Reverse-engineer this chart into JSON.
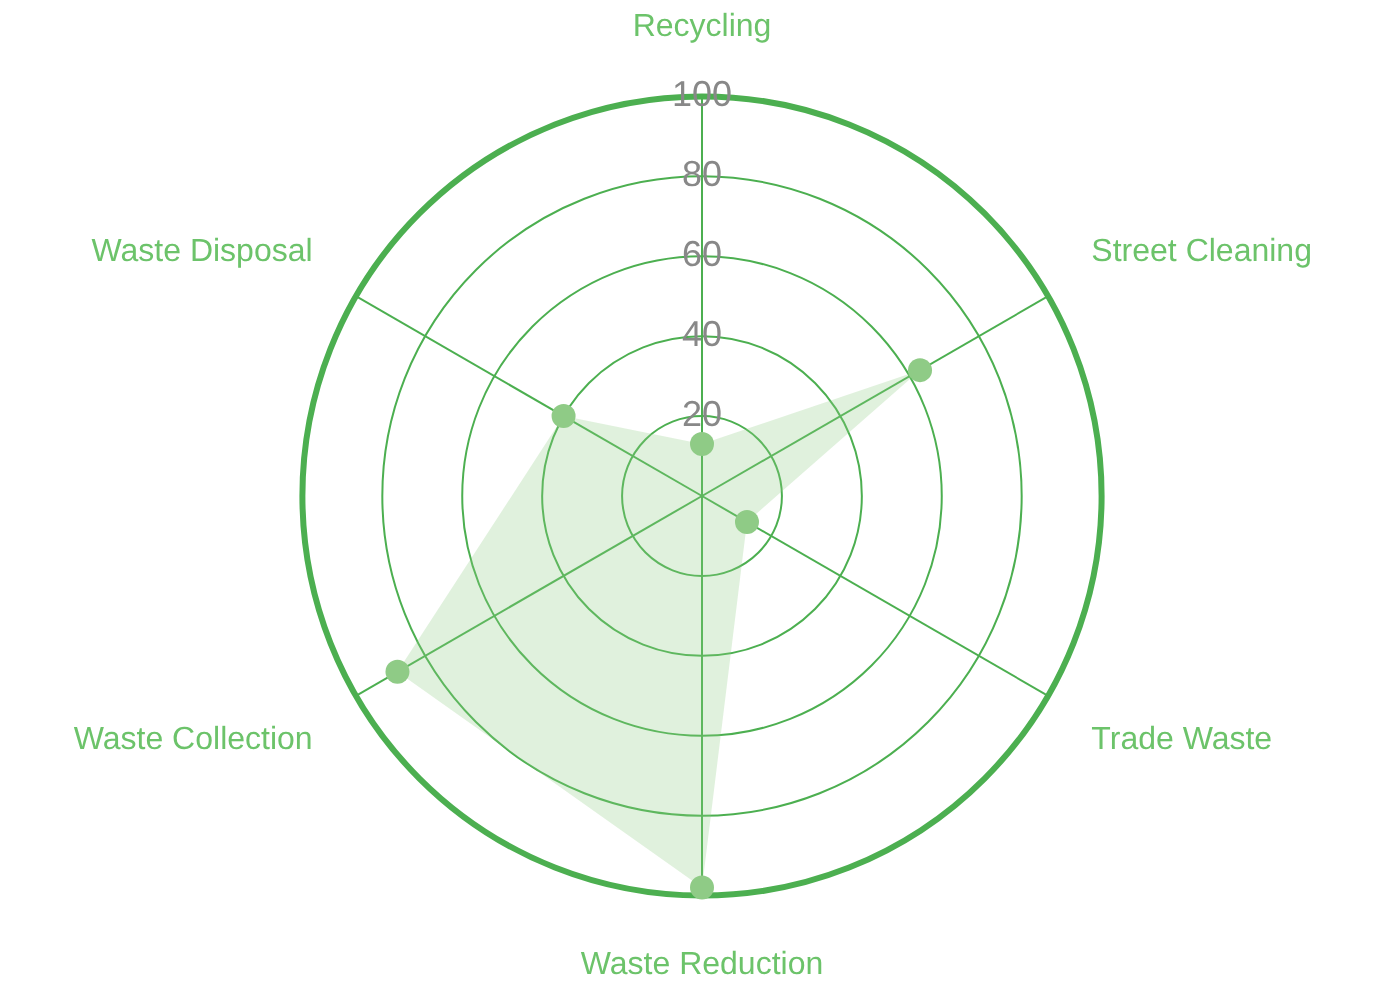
{
  "chart_data": {
    "type": "radar",
    "categories": [
      "Recycling",
      "Street Cleaning",
      "Trade Waste",
      "Waste Reduction",
      "Waste Collection",
      "Waste Disposal"
    ],
    "series": [
      {
        "color": "#8fcb86",
        "values": [
          13,
          63,
          13,
          98,
          88,
          40
        ]
      }
    ],
    "ylim": [
      0,
      100
    ],
    "yticks": [
      20,
      40,
      60,
      80,
      100
    ],
    "grid": true,
    "marker": "circle"
  }
}
